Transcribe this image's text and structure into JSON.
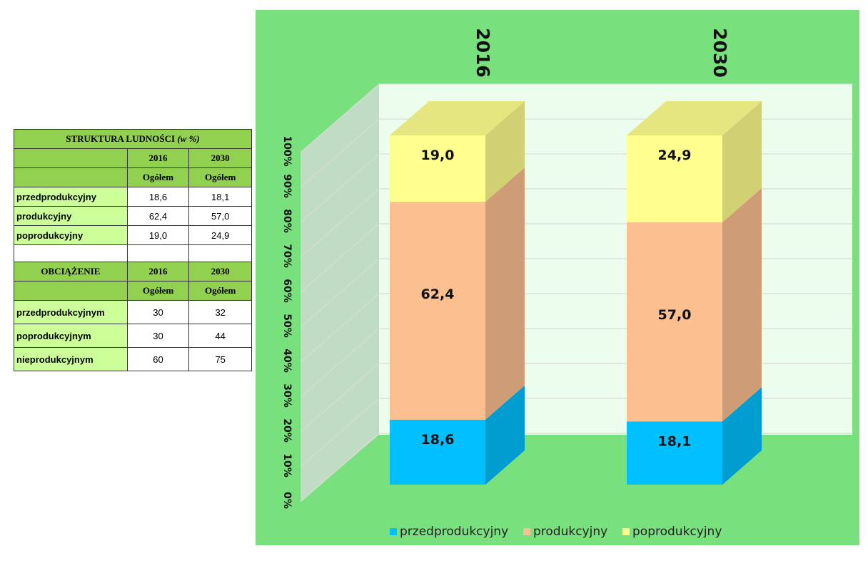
{
  "table1": {
    "title": "STRUKTURA LUDNOŚCI",
    "title_unit": "(w %)",
    "years": [
      "2016",
      "2030"
    ],
    "sub": [
      "Ogółem",
      "Ogółem"
    ],
    "rows": [
      {
        "label": "przedprodukcyjny",
        "v2016": "18,6",
        "v2030": "18,1"
      },
      {
        "label": "produkcyjny",
        "v2016": "62,4",
        "v2030": "57,0"
      },
      {
        "label": "poprodukcyjny",
        "v2016": "19,0",
        "v2030": "24,9"
      }
    ]
  },
  "table2": {
    "title": "OBCIĄŻENIE",
    "years": [
      "2016",
      "2030"
    ],
    "sub": [
      "Ogółem",
      "Ogółem"
    ],
    "rows": [
      {
        "label": "przedprodukcyjnym",
        "v2016": "30",
        "v2030": "32"
      },
      {
        "label": "poprodukcyjnym",
        "v2016": "30",
        "v2030": "44"
      },
      {
        "label": "nieprodukcyjnym",
        "v2016": "60",
        "v2030": "75"
      }
    ]
  },
  "colors": {
    "chart_bg": "#78e07c",
    "wall": "#ecfced",
    "side_wall": "#c0dcc4",
    "przedprodukcyjny": "#00c0ff",
    "produkcyjny": "#fcbf8f",
    "poprodukcyjny": "#ffff8e"
  },
  "chart_data": {
    "type": "bar",
    "stacked": true,
    "percent": true,
    "three_d": true,
    "categories": [
      "2016",
      "2030"
    ],
    "series": [
      {
        "name": "przedprodukcyjny",
        "values": [
          18.6,
          18.1
        ],
        "labels": [
          "18,6",
          "18,1"
        ]
      },
      {
        "name": "produkcyjny",
        "values": [
          62.4,
          57.0
        ],
        "labels": [
          "62,4",
          "57,0"
        ]
      },
      {
        "name": "poprodukcyjny",
        "values": [
          19.0,
          24.9
        ],
        "labels": [
          "19,0",
          "24,9"
        ]
      }
    ],
    "yticks": [
      "0%",
      "10%",
      "20%",
      "30%",
      "40%",
      "50%",
      "60%",
      "70%",
      "80%",
      "90%",
      "100%"
    ],
    "ylim": [
      0,
      100
    ],
    "grid": true,
    "legend_position": "bottom"
  }
}
